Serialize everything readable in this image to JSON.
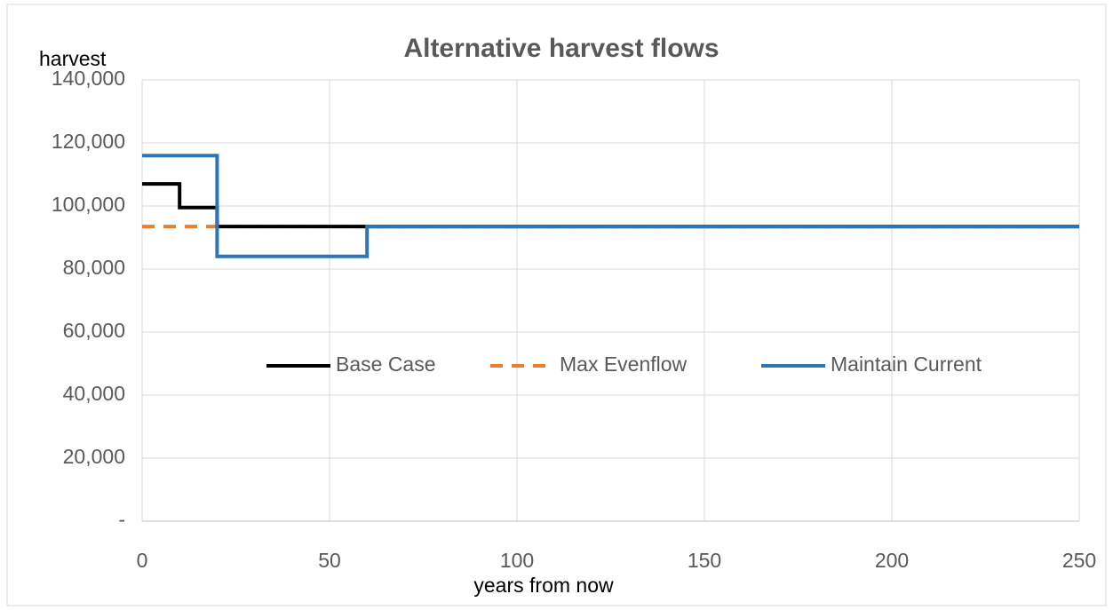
{
  "chart_data": {
    "type": "line",
    "title": "Alternative harvest flows",
    "xlabel": "years from now",
    "ylabel": "harvest",
    "series": [
      {
        "name": "Base Case",
        "color": "#000000",
        "dash": false,
        "x": [
          0,
          10,
          10,
          20,
          20,
          250
        ],
        "values": [
          107000,
          107000,
          99500,
          99500,
          93500,
          93500
        ]
      },
      {
        "name": "Max Evenflow",
        "color": "#ed7d31",
        "dash": true,
        "x": [
          0,
          250
        ],
        "values": [
          93500,
          93500
        ]
      },
      {
        "name": "Maintain Current",
        "color": "#2e75b6",
        "dash": false,
        "x": [
          0,
          20,
          20,
          60,
          60,
          250
        ],
        "values": [
          116000,
          116000,
          84000,
          84000,
          93500,
          93500
        ]
      }
    ],
    "xlim": [
      0,
      250
    ],
    "xticks": [
      0,
      50,
      100,
      150,
      200,
      250
    ],
    "ylim": [
      0,
      140000
    ],
    "yticks": [
      {
        "value": 0,
        "label": "-"
      },
      {
        "value": 20000,
        "label": "20,000"
      },
      {
        "value": 40000,
        "label": "40,000"
      },
      {
        "value": 60000,
        "label": "60,000"
      },
      {
        "value": 80000,
        "label": "80,000"
      },
      {
        "value": 100000,
        "label": "100,000"
      },
      {
        "value": 120000,
        "label": "120,000"
      },
      {
        "value": 140000,
        "label": "140,000"
      }
    ],
    "grid": true,
    "legend": "center"
  }
}
